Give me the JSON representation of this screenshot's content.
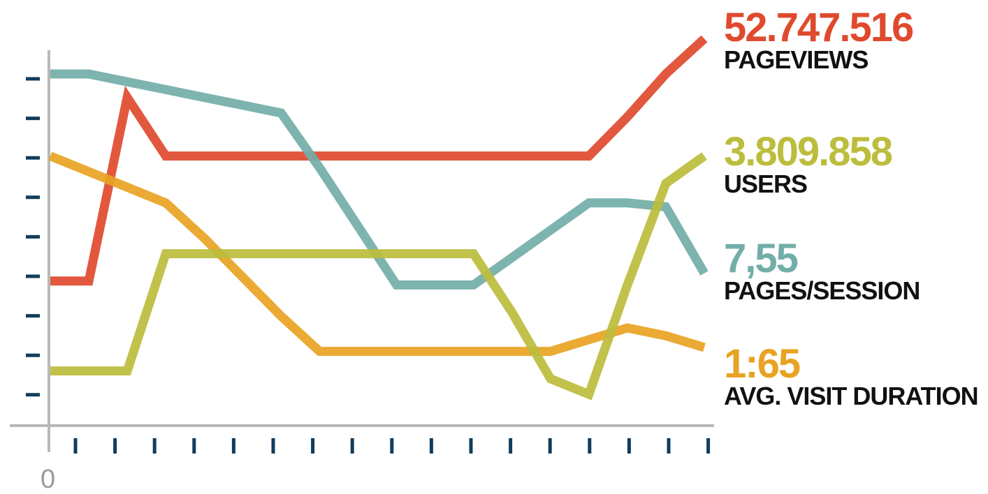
{
  "chart_data": {
    "type": "line",
    "title": "",
    "xlabel": "",
    "ylabel": "",
    "x_origin_label": "0",
    "x": [
      0,
      1,
      2,
      3,
      4,
      5,
      6,
      7,
      8,
      9,
      10,
      11,
      12,
      13,
      14,
      15,
      16,
      17
    ],
    "ylim": [
      0,
      10
    ],
    "series": [
      {
        "name": "PAGEVIEWS",
        "value_label": "52.747.516",
        "color": "#df4a2e",
        "values": [
          3.7,
          3.7,
          8.4,
          6.9,
          6.9,
          6.9,
          6.9,
          6.9,
          6.9,
          6.9,
          6.9,
          6.9,
          6.9,
          6.9,
          6.9,
          7.9,
          9.0,
          9.9
        ]
      },
      {
        "name": "USERS",
        "value_label": "3.809.858",
        "color": "#bcbd3c",
        "values": [
          1.4,
          1.4,
          1.4,
          4.4,
          4.4,
          4.4,
          4.4,
          4.4,
          4.4,
          4.4,
          4.4,
          4.4,
          2.9,
          1.2,
          0.8,
          3.6,
          6.2,
          6.9
        ]
      },
      {
        "name": "PAGES/SESSION",
        "value_label": "7,55",
        "color": "#72aea8",
        "values": [
          9.0,
          9.0,
          8.8,
          8.6,
          8.4,
          8.2,
          8.0,
          6.6,
          5.1,
          3.6,
          3.6,
          3.6,
          4.3,
          5.0,
          5.7,
          5.7,
          5.6,
          3.9
        ]
      },
      {
        "name": "AVG. VISIT DURATION",
        "value_label": "1:65",
        "color": "#e8a323",
        "values": [
          6.9,
          6.5,
          6.1,
          5.7,
          4.8,
          3.8,
          2.8,
          1.9,
          1.9,
          1.9,
          1.9,
          1.9,
          1.9,
          1.9,
          2.2,
          2.5,
          2.3,
          2.0
        ]
      }
    ],
    "grid": false,
    "legend_position": "right",
    "axis_color": "#b9b9b9",
    "tick_color": "#123d5c"
  }
}
